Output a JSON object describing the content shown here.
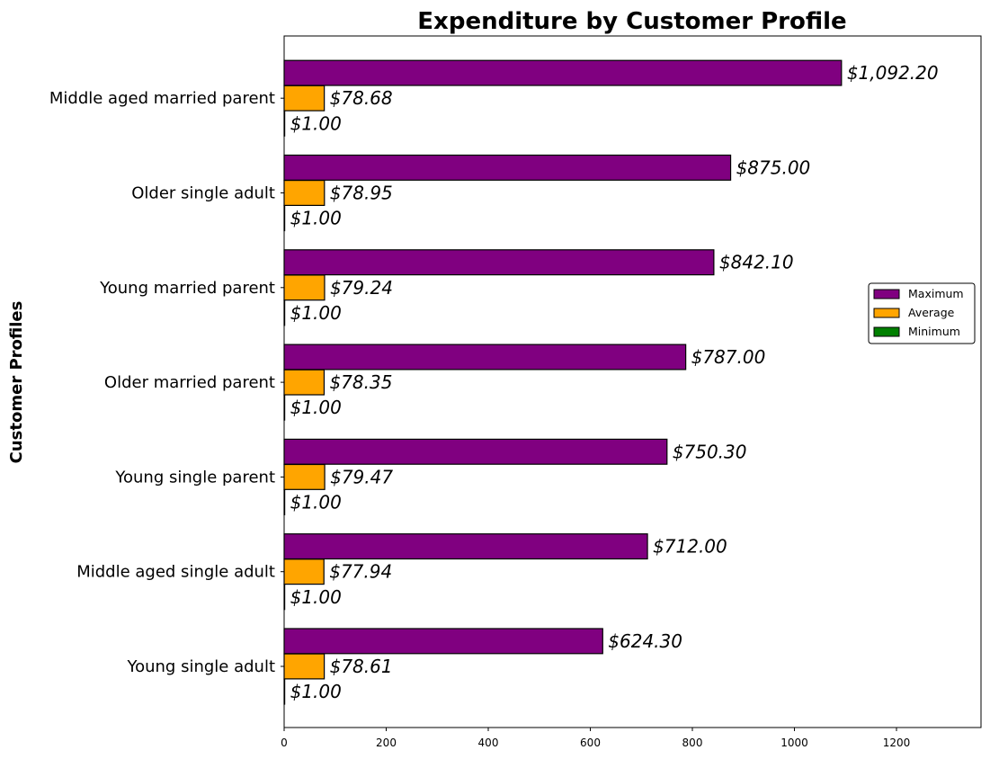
{
  "chart_data": {
    "type": "bar",
    "orientation": "horizontal",
    "title": "Expenditure by Customer Profile",
    "xlabel": "",
    "ylabel": "Customer Profiles",
    "categories": [
      "Young single adult",
      "Middle aged single adult",
      "Young single parent",
      "Older married parent",
      "Young married parent",
      "Older single adult",
      "Middle aged married parent"
    ],
    "series": [
      {
        "name": "Maximum",
        "color": "#800080",
        "values": [
          624.3,
          712.0,
          750.3,
          787.0,
          842.1,
          875.0,
          1092.2
        ],
        "labels": [
          "$624.30",
          "$712.00",
          "$750.30",
          "$787.00",
          "$842.10",
          "$875.00",
          "$1,092.20"
        ]
      },
      {
        "name": "Average",
        "color": "#FFA500",
        "values": [
          78.61,
          77.94,
          79.47,
          78.35,
          79.24,
          78.95,
          78.68
        ],
        "labels": [
          "$78.61",
          "$77.94",
          "$79.47",
          "$78.35",
          "$79.24",
          "$78.95",
          "$78.68"
        ]
      },
      {
        "name": "Minimum",
        "color": "#008000",
        "values": [
          1.0,
          1.0,
          1.0,
          1.0,
          1.0,
          1.0,
          1.0
        ],
        "labels": [
          "$1.00",
          "$1.00",
          "$1.00",
          "$1.00",
          "$1.00",
          "$1.00",
          "$1.00"
        ]
      }
    ],
    "xticks": [
      "0",
      "200",
      "400",
      "600",
      "800",
      "1000",
      "1200"
    ],
    "xlim": [
      0,
      1365
    ],
    "grid": false,
    "legend_position": "center-right"
  }
}
